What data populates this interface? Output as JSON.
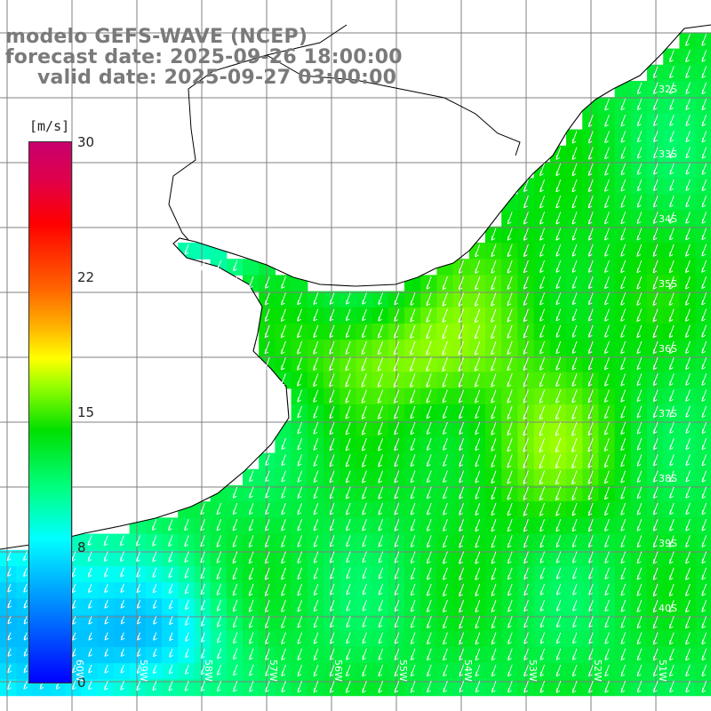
{
  "titles": {
    "model": "modelo GEFS-WAVE (NCEP)",
    "forecast": "forecast date: 2025-09-26 18:00:00",
    "valid": "valid date: 2025-09-27 03:00:00"
  },
  "colorbar": {
    "unit": "[m/s]",
    "ticks": [
      "30",
      "22",
      "15",
      "8",
      "0"
    ],
    "colors": [
      "#0000ff",
      "#00ffff",
      "#00ff00",
      "#ffff00",
      "#ff0000",
      "#c8006e"
    ]
  },
  "axes": {
    "lat_labels": [
      "32S",
      "33S",
      "34S",
      "35S",
      "36S",
      "37S",
      "38S",
      "39S",
      "40S"
    ],
    "lon_labels": [
      "60W",
      "59W",
      "58W",
      "57W",
      "56W",
      "55W",
      "54W",
      "53W",
      "52W",
      "51W"
    ]
  },
  "colors": {
    "land": "#ffffff",
    "grid": "#808080",
    "coast": "#000000",
    "arrows": "#ffffff"
  },
  "wind": {
    "direction": "from northeast",
    "max_speed_ms": 16,
    "min_speed_ms": 3
  }
}
